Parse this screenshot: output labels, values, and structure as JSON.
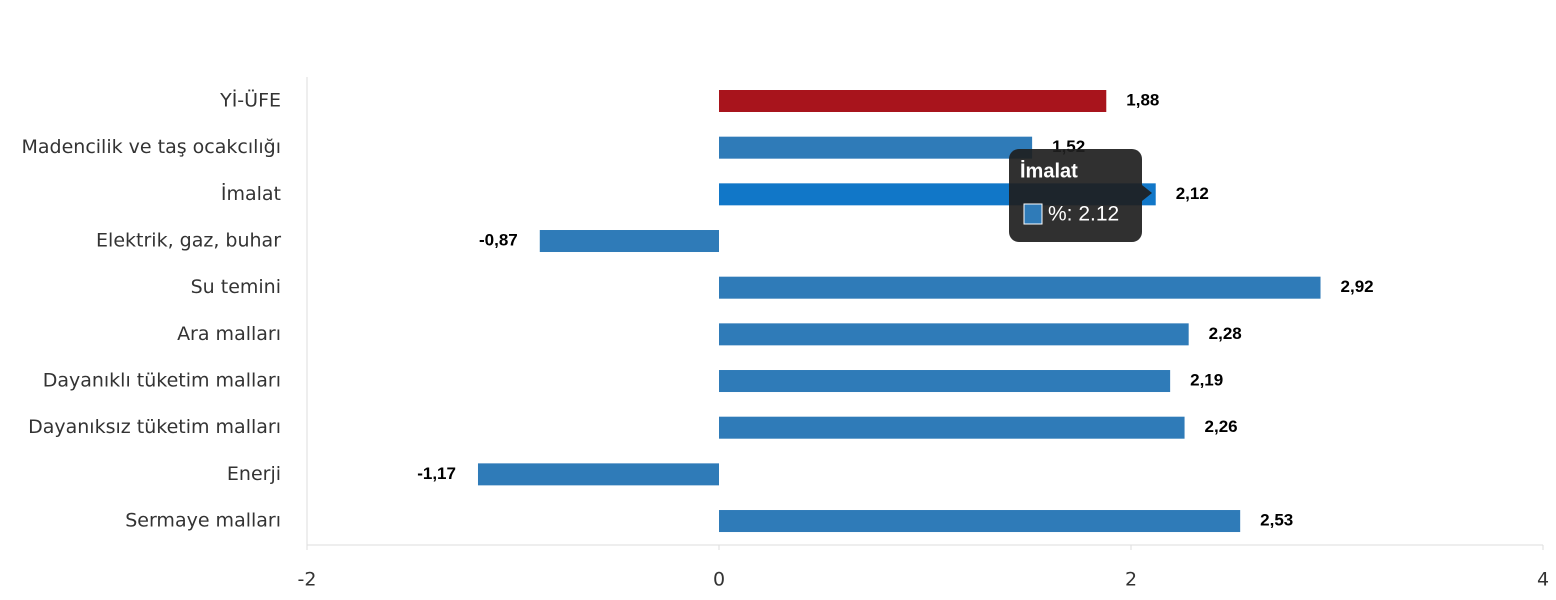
{
  "chart_data": {
    "type": "hbar",
    "categories": [
      "Yİ-ÜFE",
      "Madencilik ve taş ocakcılığı",
      "İmalat",
      "Elektrik, gaz, buhar",
      "Su temini",
      "Ara malları",
      "Dayanıklı tüketim malları",
      "Dayanıksız tüketim malları",
      "Enerji",
      "Sermaye malları"
    ],
    "values": [
      1.88,
      1.52,
      2.12,
      -0.87,
      2.92,
      2.28,
      2.19,
      2.26,
      -1.17,
      2.53
    ],
    "value_labels": [
      "1,88",
      "1,52",
      "2,12",
      "-0,87",
      "2,92",
      "2,28",
      "2,19",
      "2,26",
      "-1,17",
      "2,53"
    ],
    "colors": [
      "#a8141c",
      "#2f7bb8",
      "#1177c8",
      "#2f7bb8",
      "#2f7bb8",
      "#2f7bb8",
      "#2f7bb8",
      "#2f7bb8",
      "#2f7bb8",
      "#2f7bb8"
    ],
    "xlim": [
      -2,
      4
    ],
    "xticks": [
      -2,
      0,
      2,
      4
    ],
    "grid": false,
    "tooltip": {
      "title": "İmalat",
      "text": "%: 2.12",
      "color": "#2f7bb8"
    }
  }
}
